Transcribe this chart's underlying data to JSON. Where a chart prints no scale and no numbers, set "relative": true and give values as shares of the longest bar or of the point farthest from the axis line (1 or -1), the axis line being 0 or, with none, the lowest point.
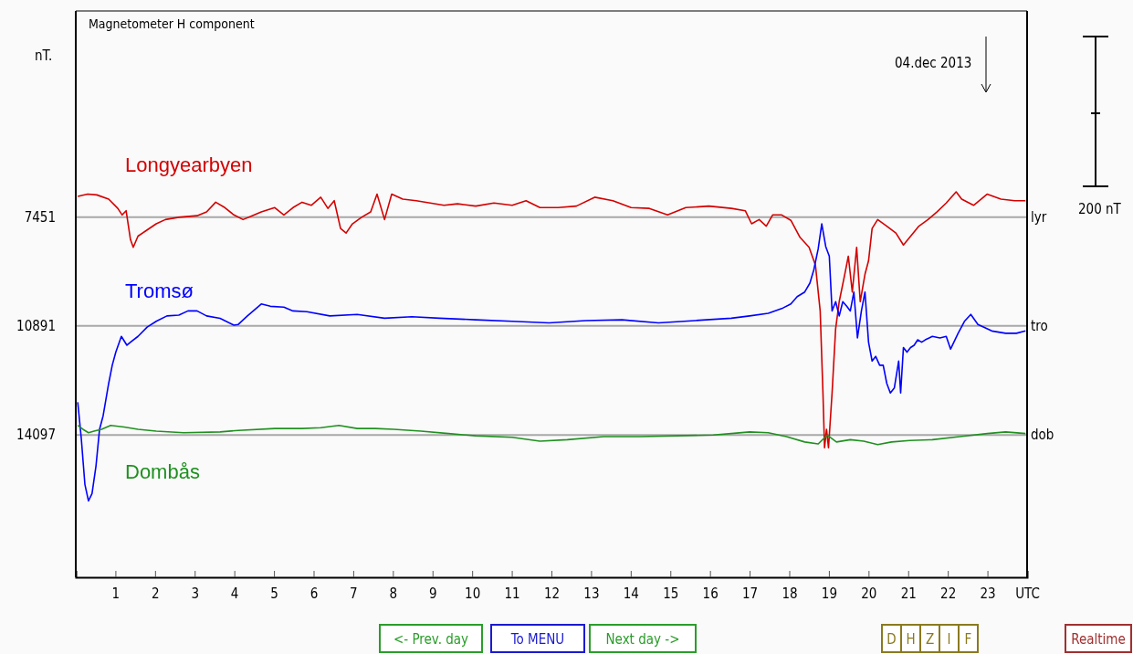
{
  "chart_data": {
    "type": "line",
    "title": "Magnetometer H component",
    "relative": true,
    "xlim": [
      0,
      24
    ],
    "xticks": [
      1,
      2,
      3,
      4,
      5,
      6,
      7,
      8,
      9,
      10,
      11,
      12,
      13,
      14,
      15,
      16,
      17,
      18,
      19,
      20,
      21,
      22,
      23,
      {
        "value": 24,
        "label": "UTC"
      }
    ],
    "legend": false,
    "line_style": "solid",
    "marker": "none",
    "ref_lines": [
      {
        "axis": "y",
        "value": 0.934,
        "color": "#a8a8a8"
      },
      {
        "axis": "y",
        "value": 0.652,
        "color": "#a8a8a8"
      },
      {
        "axis": "y",
        "value": 0.369,
        "color": "#a8a8a8"
      }
    ],
    "annotations": [
      "04.dec 2013",
      "200 nT",
      "<- Prev. day",
      "To MENU",
      "Next day ->",
      "D",
      "H",
      "Z",
      "I",
      "F",
      "Realtime",
      "nT.",
      "7451",
      "10891",
      "14097",
      "lyr",
      "tro",
      "dob"
    ],
    "series": [
      {
        "name": "Longyearbyen",
        "color": "#d40000",
        "x": [
          0.05,
          0.3,
          0.53,
          0.83,
          1.06,
          1.17,
          1.27,
          1.38,
          1.45,
          1.57,
          1.8,
          2.03,
          2.26,
          2.6,
          3.06,
          3.3,
          3.53,
          3.76,
          3.99,
          4.22,
          4.45,
          4.68,
          5.02,
          5.25,
          5.48,
          5.71,
          5.94,
          6.18,
          6.36,
          6.52,
          6.68,
          6.82,
          6.98,
          7.21,
          7.44,
          7.6,
          7.79,
          7.97,
          8.25,
          8.59,
          8.94,
          9.29,
          9.63,
          10.09,
          10.55,
          11.01,
          11.36,
          11.71,
          12.17,
          12.63,
          13.09,
          13.55,
          14.01,
          14.47,
          14.93,
          15.39,
          15.97,
          16.54,
          16.89,
          17.05,
          17.24,
          17.42,
          17.58,
          17.81,
          18.04,
          18.27,
          18.5,
          18.66,
          18.78,
          18.85,
          18.89,
          18.94,
          18.99,
          19.08,
          19.17,
          19.26,
          19.4,
          19.49,
          19.59,
          19.7,
          19.79,
          19.91,
          20.0,
          20.09,
          20.23,
          20.46,
          20.69,
          20.88,
          21.04,
          21.27,
          21.5,
          21.73,
          21.96,
          22.21,
          22.35,
          22.65,
          22.99,
          23.34,
          23.69,
          23.96
        ],
        "values": [
          0.988,
          0.994,
          0.992,
          0.981,
          0.957,
          0.94,
          0.951,
          0.876,
          0.856,
          0.885,
          0.901,
          0.917,
          0.928,
          0.934,
          0.938,
          0.948,
          0.973,
          0.959,
          0.94,
          0.928,
          0.938,
          0.948,
          0.959,
          0.94,
          0.959,
          0.973,
          0.965,
          0.986,
          0.957,
          0.977,
          0.905,
          0.893,
          0.917,
          0.934,
          0.948,
          0.994,
          0.928,
          0.994,
          0.981,
          0.977,
          0.971,
          0.965,
          0.969,
          0.963,
          0.971,
          0.965,
          0.977,
          0.959,
          0.959,
          0.963,
          0.986,
          0.977,
          0.959,
          0.957,
          0.94,
          0.959,
          0.963,
          0.957,
          0.951,
          0.917,
          0.928,
          0.911,
          0.94,
          0.94,
          0.926,
          0.882,
          0.856,
          0.81,
          0.691,
          0.478,
          0.336,
          0.384,
          0.336,
          0.478,
          0.645,
          0.715,
          0.786,
          0.833,
          0.74,
          0.856,
          0.715,
          0.786,
          0.821,
          0.905,
          0.928,
          0.911,
          0.893,
          0.862,
          0.882,
          0.911,
          0.928,
          0.948,
          0.971,
          1,
          0.981,
          0.965,
          0.994,
          0.981,
          0.977,
          0.977
        ]
      },
      {
        "name": "Tromsø",
        "color": "#0000ff",
        "x": [
          0.05,
          0.14,
          0.23,
          0.32,
          0.41,
          0.51,
          0.6,
          0.69,
          0.83,
          0.92,
          1.01,
          1.15,
          1.29,
          1.38,
          1.57,
          1.8,
          2.03,
          2.3,
          2.6,
          2.83,
          3.06,
          3.3,
          3.64,
          3.99,
          4.1,
          4.33,
          4.68,
          4.91,
          5.25,
          5.48,
          5.83,
          6.41,
          7.1,
          7.79,
          8.48,
          9.17,
          10.09,
          11.01,
          11.94,
          12.86,
          13.78,
          14.7,
          15.62,
          16.54,
          17.0,
          17.47,
          17.81,
          18.04,
          18.2,
          18.39,
          18.52,
          18.62,
          18.73,
          18.82,
          18.92,
          19.01,
          19.08,
          19.17,
          19.26,
          19.35,
          19.45,
          19.54,
          19.63,
          19.72,
          19.82,
          19.91,
          20.0,
          20.09,
          20.18,
          20.28,
          20.37,
          20.46,
          20.55,
          20.65,
          20.76,
          20.81,
          20.88,
          20.97,
          21.06,
          21.15,
          21.24,
          21.34,
          21.43,
          21.61,
          21.8,
          21.96,
          22.07,
          22.26,
          22.42,
          22.58,
          22.76,
          23.11,
          23.46,
          23.73,
          23.96
        ],
        "values": [
          0.454,
          0.359,
          0.241,
          0.198,
          0.217,
          0.289,
          0.384,
          0.419,
          0.503,
          0.55,
          0.584,
          0.625,
          0.602,
          0.61,
          0.625,
          0.649,
          0.664,
          0.678,
          0.68,
          0.691,
          0.691,
          0.678,
          0.672,
          0.654,
          0.656,
          0.678,
          0.709,
          0.703,
          0.701,
          0.691,
          0.689,
          0.678,
          0.682,
          0.672,
          0.676,
          0.672,
          0.668,
          0.664,
          0.66,
          0.666,
          0.668,
          0.66,
          0.666,
          0.672,
          0.678,
          0.685,
          0.697,
          0.709,
          0.728,
          0.74,
          0.763,
          0.798,
          0.852,
          0.917,
          0.858,
          0.833,
          0.691,
          0.715,
          0.678,
          0.715,
          0.703,
          0.691,
          0.74,
          0.621,
          0.691,
          0.74,
          0.61,
          0.561,
          0.573,
          0.55,
          0.55,
          0.503,
          0.478,
          0.491,
          0.561,
          0.478,
          0.596,
          0.584,
          0.596,
          0.602,
          0.616,
          0.61,
          0.616,
          0.625,
          0.621,
          0.625,
          0.592,
          0.633,
          0.664,
          0.682,
          0.656,
          0.639,
          0.633,
          0.633,
          0.639
        ]
      },
      {
        "name": "Dombås",
        "color": "#209020",
        "x": [
          0.05,
          0.18,
          0.32,
          0.46,
          0.65,
          0.88,
          1.22,
          1.57,
          2.03,
          2.72,
          3.64,
          4.1,
          5.02,
          5.71,
          6.18,
          6.64,
          7.1,
          7.56,
          8.02,
          8.71,
          9.4,
          10.09,
          11.01,
          11.71,
          12.4,
          13.32,
          14.24,
          15.16,
          16.08,
          16.54,
          17.0,
          17.47,
          17.93,
          18.39,
          18.73,
          18.96,
          19.19,
          19.54,
          19.88,
          20.23,
          20.58,
          21.04,
          21.61,
          22.3,
          23.0,
          23.46,
          23.96
        ],
        "values": [
          0.394,
          0.384,
          0.375,
          0.379,
          0.384,
          0.394,
          0.39,
          0.384,
          0.379,
          0.375,
          0.377,
          0.381,
          0.386,
          0.386,
          0.388,
          0.394,
          0.386,
          0.386,
          0.384,
          0.379,
          0.373,
          0.367,
          0.363,
          0.353,
          0.357,
          0.365,
          0.365,
          0.367,
          0.369,
          0.373,
          0.377,
          0.375,
          0.365,
          0.351,
          0.346,
          0.369,
          0.351,
          0.357,
          0.353,
          0.344,
          0.351,
          0.355,
          0.357,
          0.365,
          0.373,
          0.377,
          0.373
        ]
      }
    ]
  }
}
